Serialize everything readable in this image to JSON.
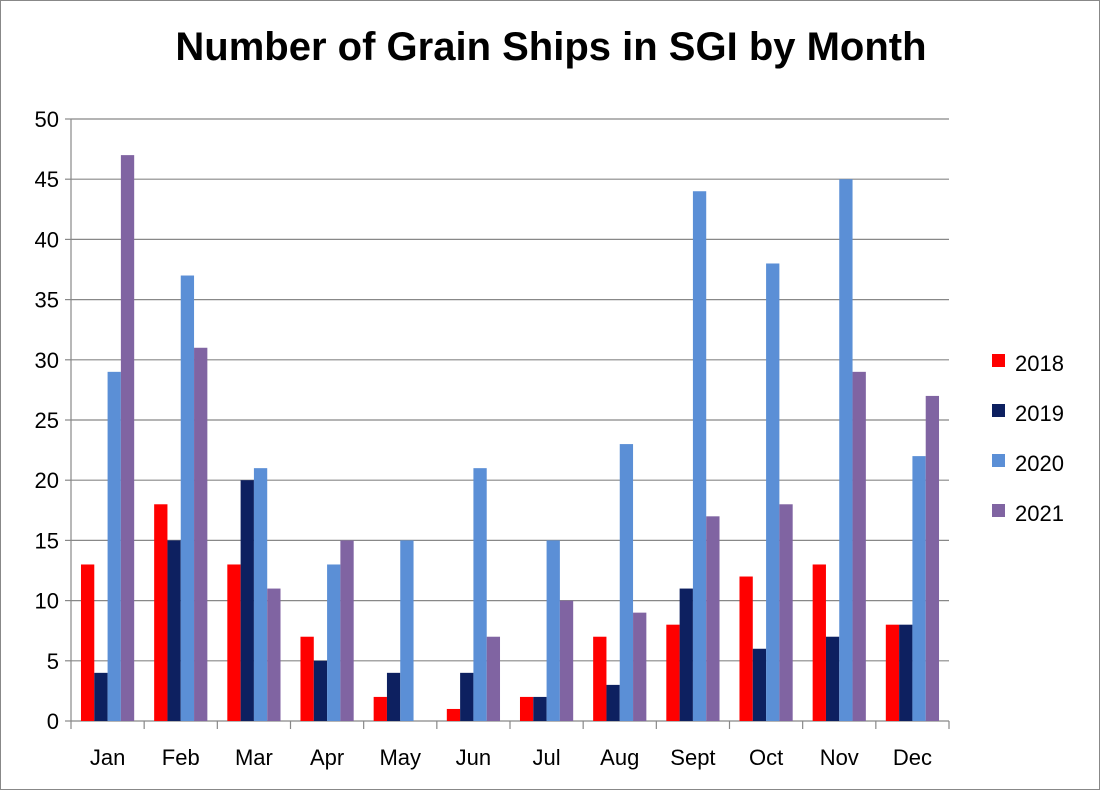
{
  "chart_data": {
    "type": "bar",
    "title": "Number of Grain Ships in SGI by Month",
    "xlabel": "",
    "ylabel": "",
    "categories": [
      "Jan",
      "Feb",
      "Mar",
      "Apr",
      "May",
      "Jun",
      "Jul",
      "Aug",
      "Sept",
      "Oct",
      "Nov",
      "Dec"
    ],
    "series": [
      {
        "name": "2018",
        "color": "#ff0000",
        "values": [
          13,
          18,
          13,
          7,
          2,
          1,
          2,
          7,
          8,
          12,
          13,
          8
        ]
      },
      {
        "name": "2019",
        "color": "#0d2060",
        "values": [
          4,
          15,
          20,
          5,
          4,
          4,
          2,
          3,
          11,
          6,
          7,
          8
        ]
      },
      {
        "name": "2020",
        "color": "#5b8fd6",
        "values": [
          29,
          37,
          21,
          13,
          15,
          21,
          15,
          23,
          44,
          38,
          45,
          22
        ]
      },
      {
        "name": "2021",
        "color": "#8064a2",
        "values": [
          47,
          31,
          11,
          15,
          0,
          7,
          10,
          9,
          17,
          18,
          29,
          27
        ]
      }
    ],
    "ylim": [
      0,
      50
    ],
    "yticks": [
      0,
      5,
      10,
      15,
      20,
      25,
      30,
      35,
      40,
      45,
      50
    ],
    "grid": true,
    "legend_position": "right"
  }
}
